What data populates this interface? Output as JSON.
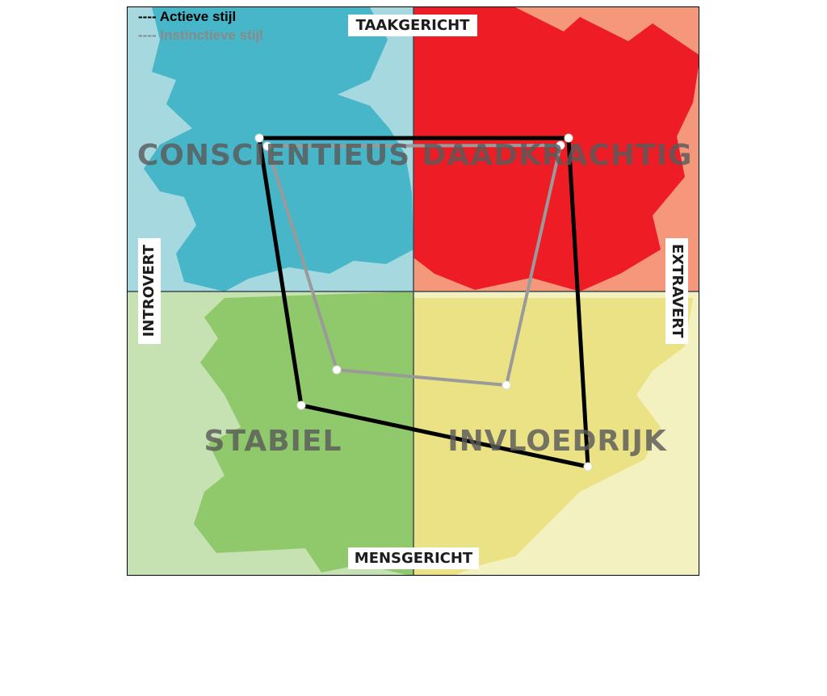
{
  "legend": {
    "active": {
      "label": "---- Actieve stijl",
      "color": "#000000"
    },
    "instinctive": {
      "label": "---- Instinctieve stijl",
      "color": "#8a8a8a"
    }
  },
  "axes": {
    "top": "TAAKGERICHT",
    "bottom": "MENSGERICHT",
    "left": "INTROVERT",
    "right": "EXTRAVERT"
  },
  "quadrants": {
    "top_left": {
      "label": "CONSCIENTIEUS",
      "color": "#46b6c8",
      "light_color": "#a6d8e0"
    },
    "top_right": {
      "label": "DAADKRACHTIG",
      "color": "#ee1c25",
      "light_color": "#f4977b"
    },
    "bottom_left": {
      "label": "STABIEL",
      "color": "#8fc96b",
      "light_color": "#c6e2b2"
    },
    "bottom_right": {
      "label": "INVLOEDRIJK",
      "color": "#eae285",
      "light_color": "#f3f1bf"
    }
  }
}
